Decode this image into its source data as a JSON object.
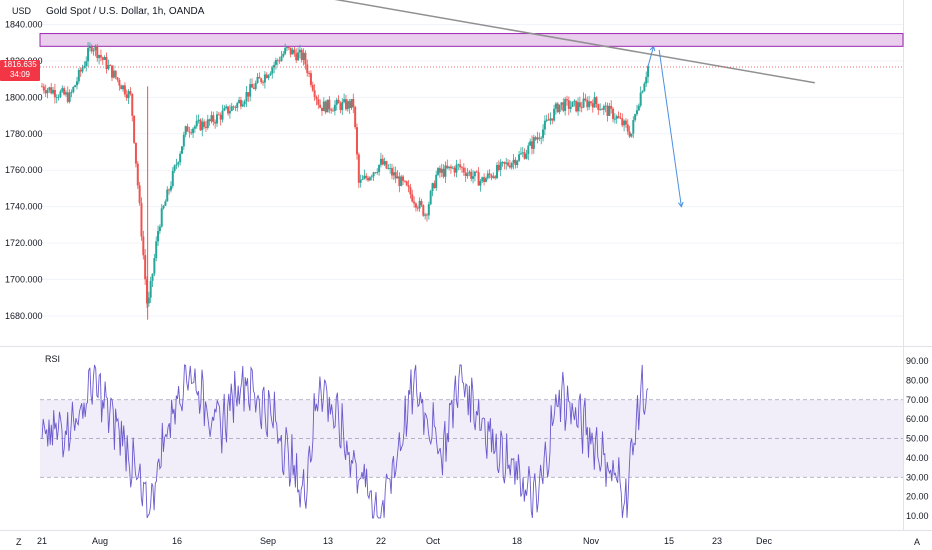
{
  "header": {
    "currency": "USD",
    "symbol_title": "Gold Spot / U.S. Dollar, 1h, OANDA"
  },
  "price_badge": {
    "price": "1816.635",
    "countdown": "34:09"
  },
  "indicator": {
    "label": "RSI"
  },
  "corner": {
    "left": "Z",
    "right": "A"
  },
  "colors": {
    "up": "#26a69a",
    "down": "#ef5350",
    "rsi_line": "#6a5acd",
    "rsi_band": "#ede7f6",
    "zone_fill": "#e1bee7",
    "zone_stroke": "#9c27b0",
    "trendline": "#909090",
    "arrow": "#4a90e2",
    "price_line": "#f23645"
  },
  "chart_data": [
    {
      "type": "candlestick",
      "title": "Gold Spot / U.S. Dollar, 1h, OANDA",
      "ylabel": "USD",
      "ylim": [
        1670,
        1845
      ],
      "yticks": [
        1680,
        1700,
        1720,
        1740,
        1760,
        1780,
        1800,
        1820,
        1840
      ],
      "ytick_labels": [
        "1680.000",
        "1700.000",
        "1720.000",
        "1740.000",
        "1760.000",
        "1780.000",
        "1800.000",
        "1820.000",
        "1840.000"
      ],
      "xticks": [
        "21",
        "Aug",
        "16",
        "Sep",
        "13",
        "22",
        "Oct",
        "18",
        "Nov",
        "15",
        "23",
        "Dec"
      ],
      "last_price": 1816.635,
      "close_path": [
        {
          "x": "Jul 21",
          "y": 1806
        },
        {
          "x": "Jul 26",
          "y": 1800
        },
        {
          "x": "Jul 30",
          "y": 1829
        },
        {
          "x": "Aug 3",
          "y": 1812
        },
        {
          "x": "Aug 6",
          "y": 1800
        },
        {
          "x": "Aug 9",
          "y": 1683
        },
        {
          "x": "Aug 11",
          "y": 1730
        },
        {
          "x": "Aug 16",
          "y": 1783
        },
        {
          "x": "Aug 20",
          "y": 1786
        },
        {
          "x": "Aug 25",
          "y": 1796
        },
        {
          "x": "Aug 30",
          "y": 1812
        },
        {
          "x": "Sep 3",
          "y": 1826
        },
        {
          "x": "Sep 6",
          "y": 1822
        },
        {
          "x": "Sep 9",
          "y": 1795
        },
        {
          "x": "Sep 15",
          "y": 1796
        },
        {
          "x": "Sep 16",
          "y": 1752
        },
        {
          "x": "Sep 20",
          "y": 1764
        },
        {
          "x": "Sep 24",
          "y": 1752
        },
        {
          "x": "Sep 28",
          "y": 1736
        },
        {
          "x": "Sep 30",
          "y": 1758
        },
        {
          "x": "Oct 4",
          "y": 1762
        },
        {
          "x": "Oct 8",
          "y": 1754
        },
        {
          "x": "Oct 12",
          "y": 1762
        },
        {
          "x": "Oct 16",
          "y": 1770
        },
        {
          "x": "Oct 19",
          "y": 1782
        },
        {
          "x": "Oct 22",
          "y": 1796
        },
        {
          "x": "Oct 25",
          "y": 1795
        },
        {
          "x": "Oct 28",
          "y": 1798
        },
        {
          "x": "Nov 1",
          "y": 1790
        },
        {
          "x": "Nov 4",
          "y": 1780
        },
        {
          "x": "Nov 5",
          "y": 1795
        },
        {
          "x": "Nov 7",
          "y": 1817
        }
      ],
      "annotations": {
        "resistance_zone": [
          1828,
          1835
        ],
        "trendline": [
          {
            "x": "Jul 28",
            "y": 1878
          },
          {
            "x": "Dec 7",
            "y": 1808
          }
        ],
        "projection_arrow_up": [
          {
            "x": "Nov 7",
            "y": 1817
          },
          {
            "x": "Nov 8",
            "y": 1828
          }
        ],
        "projection_arrow_down": [
          {
            "x": "Nov 9",
            "y": 1826
          },
          {
            "x": "Nov 13",
            "y": 1740
          }
        ]
      }
    },
    {
      "type": "line",
      "title": "RSI",
      "ylim": [
        5,
        93
      ],
      "yticks": [
        10,
        20,
        30,
        40,
        50,
        60,
        70,
        80,
        90
      ],
      "ytick_labels": [
        "10.00",
        "20.00",
        "30.00",
        "40.00",
        "50.00",
        "60.00",
        "70.00",
        "80.00",
        "90.00"
      ],
      "bands": [
        30,
        50,
        70
      ],
      "series": [
        {
          "values": [
            {
              "x": "Jul 21",
              "y": 48
            },
            {
              "x": "Jul 28",
              "y": 62
            },
            {
              "x": "Jul 30",
              "y": 80
            },
            {
              "x": "Aug 5",
              "y": 48
            },
            {
              "x": "Aug 9",
              "y": 11
            },
            {
              "x": "Aug 12",
              "y": 50
            },
            {
              "x": "Aug 16",
              "y": 87
            },
            {
              "x": "Aug 22",
              "y": 55
            },
            {
              "x": "Aug 26",
              "y": 82
            },
            {
              "x": "Sep 1",
              "y": 58
            },
            {
              "x": "Sep 6",
              "y": 20
            },
            {
              "x": "Sep 9",
              "y": 80
            },
            {
              "x": "Sep 15",
              "y": 38
            },
            {
              "x": "Sep 20",
              "y": 10
            },
            {
              "x": "Sep 26",
              "y": 78
            },
            {
              "x": "Oct 1",
              "y": 42
            },
            {
              "x": "Oct 4",
              "y": 82
            },
            {
              "x": "Oct 12",
              "y": 40
            },
            {
              "x": "Oct 18",
              "y": 16
            },
            {
              "x": "Oct 22",
              "y": 74
            },
            {
              "x": "Oct 28",
              "y": 50
            },
            {
              "x": "Nov 3",
              "y": 20
            },
            {
              "x": "Nov 6",
              "y": 80
            },
            {
              "x": "Nov 7",
              "y": 62
            }
          ]
        }
      ]
    }
  ]
}
